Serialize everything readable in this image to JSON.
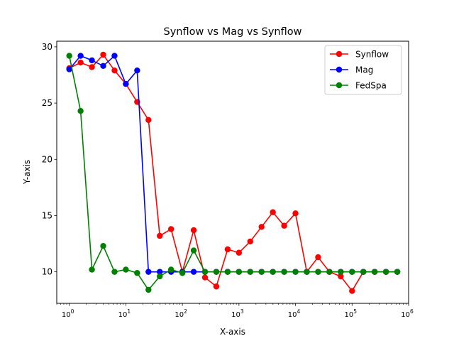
{
  "chart_data": {
    "type": "line",
    "title": "Synflow vs Mag vs Synflow",
    "xlabel": "X-axis",
    "ylabel": "Y-axis",
    "xscale": "log",
    "xlim": [
      0.6,
      1000000
    ],
    "ylim": [
      7.2,
      30.5
    ],
    "xticks": [
      {
        "value": 1,
        "base": "10",
        "exp": "0"
      },
      {
        "value": 10,
        "base": "10",
        "exp": "1"
      },
      {
        "value": 100,
        "base": "10",
        "exp": "2"
      },
      {
        "value": 1000,
        "base": "10",
        "exp": "3"
      },
      {
        "value": 10000,
        "base": "10",
        "exp": "4"
      },
      {
        "value": 100000,
        "base": "10",
        "exp": "5"
      },
      {
        "value": 1000000,
        "base": "10",
        "exp": "6"
      }
    ],
    "yticks": [
      10,
      15,
      20,
      25,
      30
    ],
    "grid": false,
    "legend_position": "top-right",
    "x": [
      1,
      1.585,
      2.512,
      3.981,
      6.31,
      10,
      15.85,
      25.12,
      39.81,
      63.1,
      100,
      158.5,
      251.2,
      398.1,
      631,
      1000,
      1585,
      2512,
      3981,
      6310,
      10000,
      15850,
      25120,
      39810,
      63100,
      100000,
      158500,
      251200,
      398100,
      631000
    ],
    "series": [
      {
        "name": "Synflow",
        "color": "#ff0000",
        "values": [
          28.1,
          28.6,
          28.2,
          29.3,
          27.9,
          26.7,
          25.1,
          23.5,
          13.2,
          13.8,
          10.0,
          13.7,
          9.5,
          8.7,
          12.0,
          11.7,
          12.7,
          14.0,
          15.3,
          14.1,
          15.2,
          10.0,
          11.3,
          10.0,
          9.6,
          8.3,
          10.0,
          10.0,
          10.0,
          10.0
        ]
      },
      {
        "name": "Mag",
        "color": "#0000ff",
        "values": [
          28.0,
          29.2,
          28.8,
          28.3,
          29.2,
          26.7,
          27.9,
          10.0,
          10.0,
          10.0,
          10.0,
          10.0,
          10.0,
          10.0,
          10.0,
          10.0,
          10.0,
          10.0,
          10.0,
          10.0,
          10.0,
          10.0,
          10.0,
          10.0,
          10.0,
          10.0,
          10.0,
          10.0,
          10.0,
          10.0
        ]
      },
      {
        "name": "FedSpa",
        "color": "#008000",
        "values": [
          29.2,
          24.3,
          10.2,
          12.3,
          10.0,
          10.2,
          9.9,
          8.4,
          9.6,
          10.2,
          9.9,
          11.9,
          10.0,
          10.0,
          10.0,
          10.0,
          10.0,
          10.0,
          10.0,
          10.0,
          10.0,
          10.0,
          10.0,
          10.0,
          10.0,
          10.0,
          10.0,
          10.0,
          10.0,
          10.0
        ]
      }
    ]
  }
}
